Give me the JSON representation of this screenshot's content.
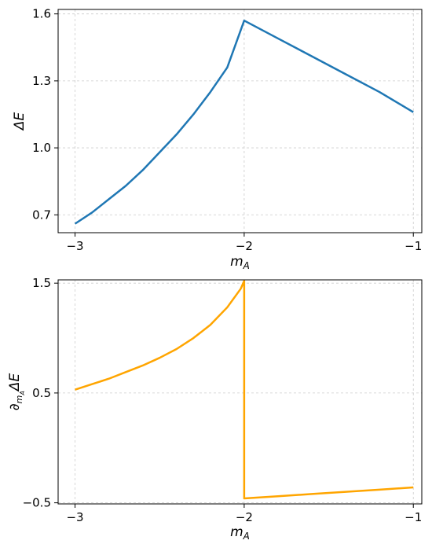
{
  "chart_data": [
    {
      "type": "line",
      "xlabel": "m_A",
      "ylabel": "ΔE",
      "xlim": [
        -3.1,
        -0.95
      ],
      "ylim": [
        0.62,
        1.62
      ],
      "xticks": [
        -3,
        -2,
        -1
      ],
      "xtick_labels": [
        "−3",
        "−2",
        "−1"
      ],
      "yticks": [
        0.7,
        1.0,
        1.3,
        1.6
      ],
      "ytick_labels": [
        "0.7",
        "1.0",
        "1.3",
        "1.6"
      ],
      "grid": true,
      "series": [
        {
          "color": "#1f77b4",
          "x": [
            -3.0,
            -2.9,
            -2.8,
            -2.7,
            -2.6,
            -2.5,
            -2.4,
            -2.3,
            -2.2,
            -2.1,
            -2.0,
            -1.8,
            -1.6,
            -1.4,
            -1.2,
            -1.0
          ],
          "y": [
            0.66,
            0.71,
            0.77,
            0.83,
            0.9,
            0.98,
            1.06,
            1.15,
            1.25,
            1.36,
            1.57,
            1.49,
            1.41,
            1.33,
            1.25,
            1.16
          ]
        }
      ]
    },
    {
      "type": "line",
      "xlabel": "m_A",
      "ylabel": "∂_{m_A}ΔE",
      "xlim": [
        -3.1,
        -0.95
      ],
      "ylim": [
        -0.51,
        1.53
      ],
      "xticks": [
        -3,
        -2,
        -1
      ],
      "xtick_labels": [
        "−3",
        "−2",
        "−1"
      ],
      "yticks": [
        -0.5,
        0.5,
        1.5
      ],
      "ytick_labels": [
        "−0.5",
        "0.5",
        "1.5"
      ],
      "grid": true,
      "series": [
        {
          "color": "#ffa500",
          "x": [
            -3.0,
            -2.9,
            -2.8,
            -2.7,
            -2.6,
            -2.5,
            -2.4,
            -2.3,
            -2.2,
            -2.1,
            -2.02,
            -2.0,
            -2.0,
            -1.8,
            -1.6,
            -1.4,
            -1.2,
            -1.0
          ],
          "y": [
            0.53,
            0.58,
            0.63,
            0.69,
            0.75,
            0.82,
            0.9,
            1.0,
            1.12,
            1.28,
            1.45,
            1.52,
            -0.46,
            -0.44,
            -0.42,
            -0.4,
            -0.38,
            -0.36
          ]
        }
      ]
    }
  ]
}
